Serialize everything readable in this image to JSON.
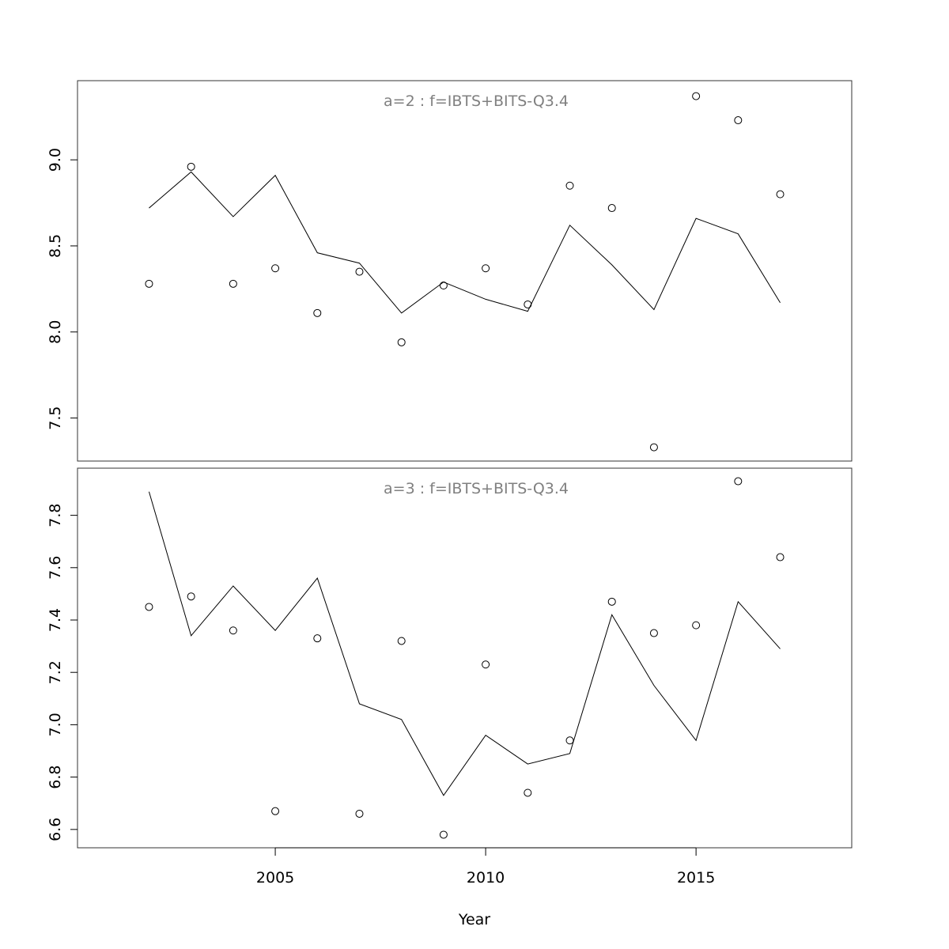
{
  "xlabel": "Year",
  "x_ticks": [
    2005,
    2010,
    2015
  ],
  "xlim": [
    2000.3,
    2018.7
  ],
  "colors": {
    "line": "#000000",
    "points": "#000000",
    "panel_title": "#808080",
    "frame": "#333333"
  },
  "chart_data": [
    {
      "type": "line",
      "title": "a=2  :  f=IBTS+BITS-Q3.4",
      "xlabel": "",
      "ylabel": "",
      "ylim": [
        7.25,
        9.46
      ],
      "y_ticks": [
        7.5,
        8.0,
        8.5,
        9.0
      ],
      "y_tick_labels": [
        "7.5",
        "8.0",
        "8.5",
        "9.0"
      ],
      "x": [
        2002,
        2003,
        2004,
        2005,
        2006,
        2007,
        2008,
        2009,
        2010,
        2011,
        2012,
        2013,
        2014,
        2015,
        2016,
        2017
      ],
      "series": [
        {
          "values": [
            8.72,
            8.93,
            8.67,
            8.91,
            8.46,
            8.4,
            8.11,
            8.29,
            8.19,
            8.12,
            8.62,
            8.39,
            8.13,
            8.66,
            8.57,
            8.17
          ]
        },
        {
          "values": [
            8.28,
            8.96,
            8.28,
            8.37,
            8.11,
            8.35,
            7.94,
            8.27,
            8.37,
            8.16,
            8.85,
            8.72,
            7.33,
            9.37,
            9.23,
            8.8
          ]
        }
      ],
      "marks": [
        "line",
        "points"
      ]
    },
    {
      "type": "line",
      "title": "a=3  :  f=IBTS+BITS-Q3.4",
      "xlabel": "Year",
      "ylabel": "",
      "ylim": [
        6.53,
        7.98
      ],
      "y_ticks": [
        6.6,
        6.8,
        7.0,
        7.2,
        7.4,
        7.6,
        7.8
      ],
      "y_tick_labels": [
        "6.6",
        "6.8",
        "7.0",
        "7.2",
        "7.4",
        "7.6",
        "7.8"
      ],
      "x": [
        2002,
        2003,
        2004,
        2005,
        2006,
        2007,
        2008,
        2009,
        2010,
        2011,
        2012,
        2013,
        2014,
        2015,
        2016,
        2017
      ],
      "series": [
        {
          "values": [
            7.89,
            7.34,
            7.53,
            7.36,
            7.56,
            7.08,
            7.02,
            6.73,
            6.96,
            6.85,
            6.89,
            7.42,
            7.15,
            6.94,
            7.47,
            7.29
          ]
        },
        {
          "values": [
            7.45,
            7.49,
            7.36,
            6.67,
            7.33,
            6.66,
            7.32,
            6.58,
            7.23,
            6.74,
            6.94,
            7.47,
            7.35,
            7.38,
            7.93,
            7.64
          ]
        }
      ],
      "marks": [
        "line",
        "points"
      ]
    }
  ]
}
